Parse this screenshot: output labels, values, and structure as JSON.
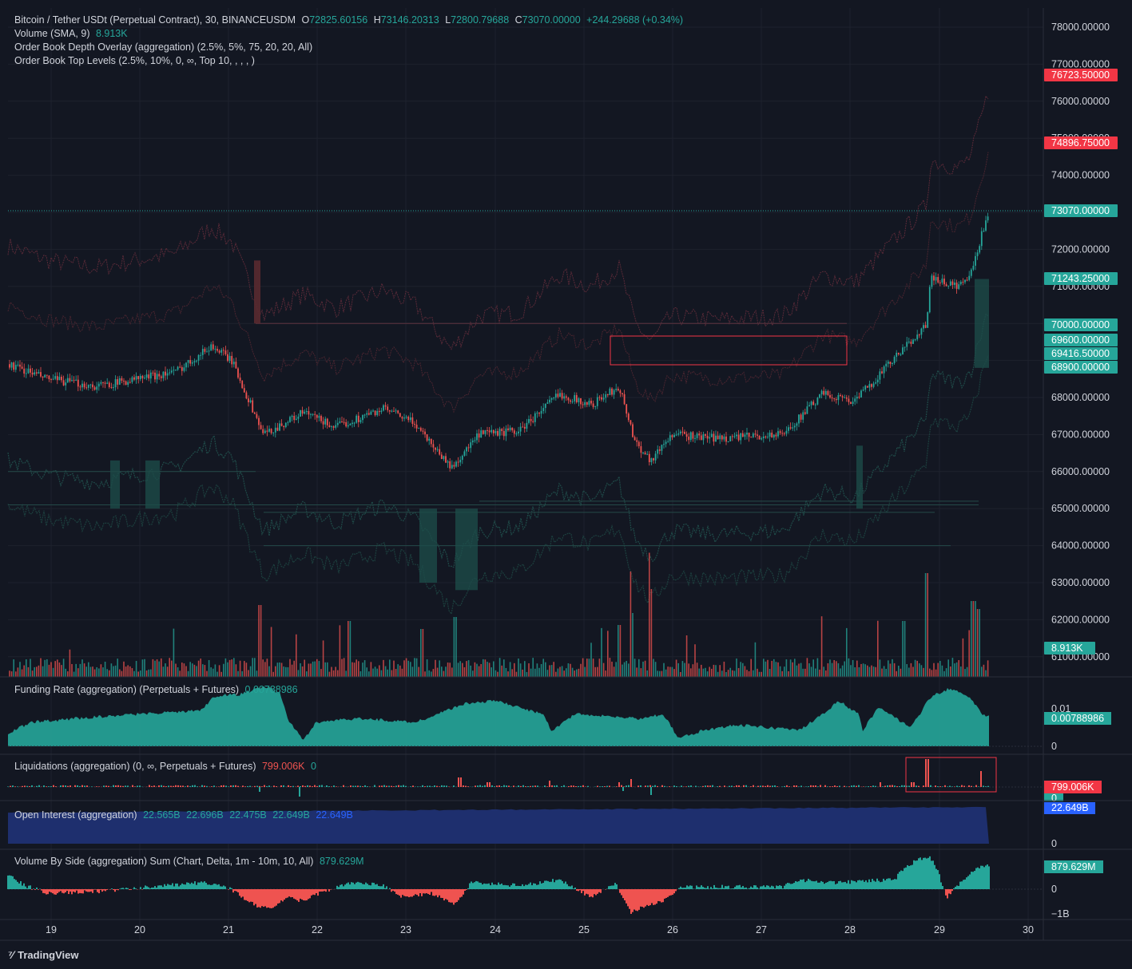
{
  "main_legend": {
    "symbol": "Bitcoin / Tether USDt (Perpetual Contract), 30, BINANCEUSDM",
    "o_label": "O",
    "o_value": "72825.60156",
    "h_label": "H",
    "h_value": "73146.20313",
    "l_label": "L",
    "l_value": "72800.79688",
    "c_label": "C",
    "c_value": "73070.00000",
    "change": "+244.29688 (+0.34%)",
    "volume_label": "Volume (SMA, 9)",
    "volume_value": "8.913K",
    "depth_overlay": "Order Book Depth Overlay (aggregation) (2.5%, 5%, 75, 20, 20, All)",
    "top_levels": "Order Book Top Levels (2.5%, 10%, 0, ∞, Top 10, , , , )"
  },
  "price_axis": {
    "ticks": [
      "78000.00000",
      "77000.00000",
      "76000.00000",
      "75000.00000",
      "74000.00000",
      "72000.00000",
      "71000.00000",
      "68000.00000",
      "67000.00000",
      "66000.00000",
      "65000.00000",
      "64000.00000",
      "63000.00000",
      "62000.00000",
      "61000.00000"
    ],
    "badges": [
      {
        "text": "76723.50000",
        "color": "#f23645"
      },
      {
        "text": "74896.75000",
        "color": "#f23645"
      },
      {
        "text": "73070.00000",
        "color": "#26a69a"
      },
      {
        "text": "71243.25000",
        "color": "#26a69a"
      },
      {
        "text": "70000.00000",
        "color": "#26a69a"
      },
      {
        "text": "69600.00000",
        "color": "#26a69a"
      },
      {
        "text": "69416.50000",
        "color": "#26a69a"
      },
      {
        "text": "68900.00000",
        "color": "#26a69a"
      },
      {
        "text": "8.913K",
        "color": "#26a69a"
      }
    ]
  },
  "funding": {
    "title": "Funding Rate (aggregation) (Perpetuals + Futures)",
    "value": "0.00788986",
    "axis_top": "0.01",
    "axis_zero": "0",
    "badge": "0.00788986"
  },
  "liquidations": {
    "title": "Liquidations (aggregation) (0, ∞, Perpetuals + Futures)",
    "value_red": "799.006K",
    "value_green": "0",
    "badge_red": "799.006K",
    "badge_green": "0"
  },
  "open_interest": {
    "title": "Open Interest (aggregation)",
    "values": [
      "22.565B",
      "22.696B",
      "22.475B",
      "22.649B",
      "22.649B"
    ],
    "badge": "22.649B",
    "axis_zero": "0"
  },
  "volume_by_side": {
    "title": "Volume By Side (aggregation) Sum (Chart, Delta, 1m - 10m, 10, All)",
    "value": "879.629M",
    "badge": "879.629M",
    "axis_zero": "0",
    "axis_neg": "−1B"
  },
  "time_axis": {
    "labels": [
      "19",
      "20",
      "21",
      "22",
      "23",
      "24",
      "25",
      "26",
      "27",
      "28",
      "29",
      "30"
    ]
  },
  "brand": {
    "logo_text": "TradingView"
  },
  "colors": {
    "up": "#26a69a",
    "down": "#ef5350",
    "bg": "#131722",
    "grid": "#1e222d",
    "oi": "#1e2f6e"
  }
}
